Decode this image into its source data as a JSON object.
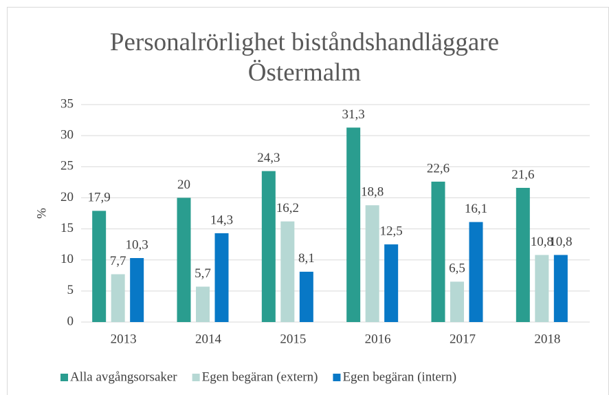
{
  "chart_data": {
    "type": "bar",
    "title": "Personalrörlighet biståndshandläggare Östermalm",
    "y_label": "%",
    "categories": [
      "2013",
      "2014",
      "2015",
      "2016",
      "2017",
      "2018"
    ],
    "series": [
      {
        "name": "Alla avgångsorsaker",
        "color": "#2a9d8f",
        "values": [
          17.9,
          20,
          24.3,
          31.3,
          22.6,
          21.6
        ],
        "value_labels": [
          "17,9",
          "20",
          "24,3",
          "31,3",
          "22,6",
          "21,6"
        ]
      },
      {
        "name": "Egen begäran (extern)",
        "color": "#b6d8d4",
        "values": [
          7.7,
          5.7,
          16.2,
          18.8,
          6.5,
          10.8
        ],
        "value_labels": [
          "7,7",
          "5,7",
          "16,2",
          "18,8",
          "6,5",
          "10,8"
        ]
      },
      {
        "name": "Egen begäran (intern)",
        "color": "#0878c6",
        "values": [
          10.3,
          14.3,
          8.1,
          12.5,
          16.1,
          10.8
        ],
        "value_labels": [
          "10,3",
          "14,3",
          "8,1",
          "12,5",
          "16,1",
          "10,8"
        ]
      }
    ],
    "ylim": [
      0,
      35
    ],
    "yticks": [
      0,
      5,
      10,
      15,
      20,
      25,
      30,
      35
    ],
    "grid": true,
    "legend": "bottom"
  }
}
